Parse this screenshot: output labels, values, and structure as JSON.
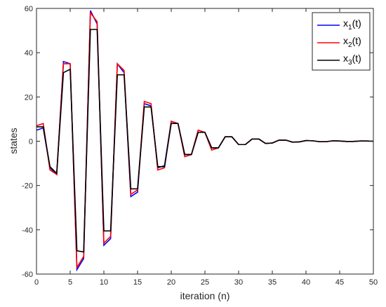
{
  "chart_data": {
    "type": "line",
    "xlabel": "iteration (n)",
    "ylabel": "states",
    "xlim": [
      0,
      50
    ],
    "ylim": [
      -60,
      60
    ],
    "xticks": [
      0,
      5,
      10,
      15,
      20,
      25,
      30,
      35,
      40,
      45,
      50
    ],
    "yticks": [
      -60,
      -40,
      -20,
      0,
      20,
      40,
      60
    ],
    "grid": false,
    "legend_position": "top-right",
    "x": [
      0,
      1,
      2,
      3,
      4,
      5,
      6,
      7,
      8,
      9,
      10,
      11,
      12,
      13,
      14,
      15,
      16,
      17,
      18,
      19,
      20,
      21,
      22,
      23,
      24,
      25,
      26,
      27,
      28,
      29,
      30,
      31,
      32,
      33,
      34,
      35,
      36,
      37,
      38,
      39,
      40,
      41,
      42,
      43,
      44,
      45,
      46,
      47,
      48,
      49,
      50
    ],
    "series": [
      {
        "name": "x1(t)",
        "legend_main": "x",
        "legend_sub": "1",
        "legend_suffix": "(t)",
        "color": "#0000ff",
        "values": [
          5,
          6,
          -12,
          -15,
          36,
          35,
          -58,
          -53,
          59,
          53,
          -47,
          -44,
          35,
          31,
          -25,
          -23,
          17,
          16,
          -12,
          -11,
          9,
          8,
          -6,
          -6,
          5,
          4,
          -3,
          -3,
          2,
          2,
          -1.5,
          -1.5,
          1,
          1,
          -1,
          -0.8,
          0.5,
          0.5,
          -0.4,
          -0.3,
          0.3,
          0.2,
          -0.2,
          -0.2,
          0.2,
          0.1,
          -0.1,
          -0.1,
          0.1,
          0.1,
          0
        ]
      },
      {
        "name": "x2(t)",
        "legend_main": "x",
        "legend_sub": "2",
        "legend_suffix": "(t)",
        "color": "#ff0000",
        "values": [
          7,
          8,
          -13,
          -15,
          35,
          35,
          -57,
          -52,
          58,
          54,
          -46,
          -43,
          35,
          32,
          -24,
          -22,
          18,
          17,
          -13,
          -12,
          9,
          8,
          -7,
          -6,
          5,
          4,
          -4,
          -3,
          2,
          2,
          -1.5,
          -1.5,
          1,
          1,
          -1,
          -0.8,
          0.5,
          0.5,
          -0.4,
          -0.3,
          0.3,
          0.2,
          -0.2,
          -0.2,
          0.2,
          0.1,
          -0.1,
          -0.1,
          0.1,
          0.1,
          0
        ]
      },
      {
        "name": "x3(t)",
        "legend_main": "x",
        "legend_sub": "3",
        "legend_suffix": "(t)",
        "color": "#000000",
        "values": [
          6.5,
          6.5,
          -11.5,
          -14.5,
          31,
          32.5,
          -49.5,
          -50,
          50.5,
          50.5,
          -40.5,
          -40.5,
          30,
          30,
          -21.5,
          -21.5,
          15.5,
          15.5,
          -11.5,
          -11.5,
          8,
          8,
          -6,
          -6,
          4,
          4,
          -3,
          -3,
          2,
          2,
          -1.5,
          -1.5,
          1,
          1,
          -1,
          -0.8,
          0.5,
          0.5,
          -0.4,
          -0.3,
          0.3,
          0.2,
          -0.2,
          -0.2,
          0.2,
          0.1,
          -0.1,
          -0.1,
          0.1,
          0.1,
          0
        ]
      }
    ]
  }
}
